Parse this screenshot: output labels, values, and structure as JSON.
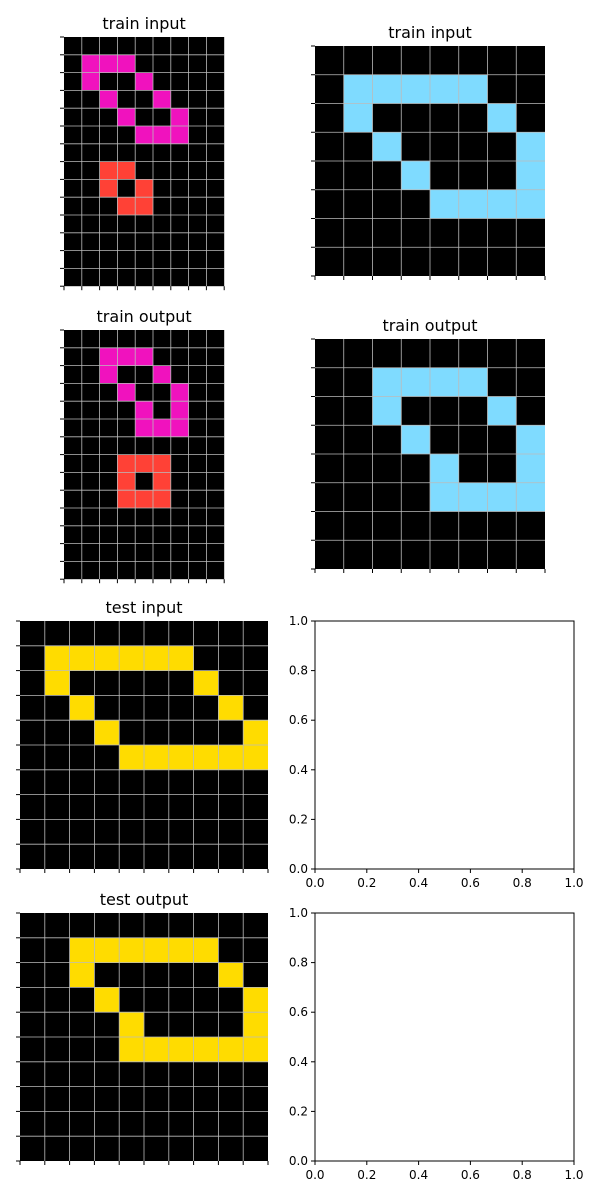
{
  "colors": {
    "0": "#000000",
    "1": "#f012be",
    "2": "#ff4136",
    "3": "#7fdbff",
    "4": "#ffdc00",
    "grid": "#bbbbbb"
  },
  "panels": [
    {
      "title": "train input",
      "grid": [
        [
          0,
          0,
          0,
          0,
          0,
          0,
          0,
          0,
          0
        ],
        [
          0,
          1,
          1,
          1,
          0,
          0,
          0,
          0,
          0
        ],
        [
          0,
          1,
          0,
          0,
          1,
          0,
          0,
          0,
          0
        ],
        [
          0,
          0,
          1,
          0,
          0,
          1,
          0,
          0,
          0
        ],
        [
          0,
          0,
          0,
          1,
          0,
          0,
          1,
          0,
          0
        ],
        [
          0,
          0,
          0,
          0,
          1,
          1,
          1,
          0,
          0
        ],
        [
          0,
          0,
          0,
          0,
          0,
          0,
          0,
          0,
          0
        ],
        [
          0,
          0,
          2,
          2,
          0,
          0,
          0,
          0,
          0
        ],
        [
          0,
          0,
          2,
          0,
          2,
          0,
          0,
          0,
          0
        ],
        [
          0,
          0,
          0,
          2,
          2,
          0,
          0,
          0,
          0
        ],
        [
          0,
          0,
          0,
          0,
          0,
          0,
          0,
          0,
          0
        ],
        [
          0,
          0,
          0,
          0,
          0,
          0,
          0,
          0,
          0
        ],
        [
          0,
          0,
          0,
          0,
          0,
          0,
          0,
          0,
          0
        ],
        [
          0,
          0,
          0,
          0,
          0,
          0,
          0,
          0,
          0
        ]
      ]
    },
    {
      "title": "train input",
      "grid": [
        [
          0,
          0,
          0,
          0,
          0,
          0,
          0,
          0
        ],
        [
          0,
          3,
          3,
          3,
          3,
          3,
          0,
          0
        ],
        [
          0,
          3,
          0,
          0,
          0,
          0,
          3,
          0
        ],
        [
          0,
          0,
          3,
          0,
          0,
          0,
          0,
          3
        ],
        [
          0,
          0,
          0,
          3,
          0,
          0,
          0,
          3
        ],
        [
          0,
          0,
          0,
          0,
          3,
          3,
          3,
          3
        ],
        [
          0,
          0,
          0,
          0,
          0,
          0,
          0,
          0
        ],
        [
          0,
          0,
          0,
          0,
          0,
          0,
          0,
          0
        ]
      ]
    },
    {
      "title": "train output",
      "grid": [
        [
          0,
          0,
          0,
          0,
          0,
          0,
          0,
          0,
          0
        ],
        [
          0,
          0,
          1,
          1,
          1,
          0,
          0,
          0,
          0
        ],
        [
          0,
          0,
          1,
          0,
          0,
          1,
          0,
          0,
          0
        ],
        [
          0,
          0,
          0,
          1,
          0,
          0,
          1,
          0,
          0
        ],
        [
          0,
          0,
          0,
          0,
          1,
          0,
          1,
          0,
          0
        ],
        [
          0,
          0,
          0,
          0,
          1,
          1,
          1,
          0,
          0
        ],
        [
          0,
          0,
          0,
          0,
          0,
          0,
          0,
          0,
          0
        ],
        [
          0,
          0,
          0,
          2,
          2,
          2,
          0,
          0,
          0
        ],
        [
          0,
          0,
          0,
          2,
          0,
          2,
          0,
          0,
          0
        ],
        [
          0,
          0,
          0,
          2,
          2,
          2,
          0,
          0,
          0
        ],
        [
          0,
          0,
          0,
          0,
          0,
          0,
          0,
          0,
          0
        ],
        [
          0,
          0,
          0,
          0,
          0,
          0,
          0,
          0,
          0
        ],
        [
          0,
          0,
          0,
          0,
          0,
          0,
          0,
          0,
          0
        ],
        [
          0,
          0,
          0,
          0,
          0,
          0,
          0,
          0,
          0
        ]
      ]
    },
    {
      "title": "train output",
      "grid": [
        [
          0,
          0,
          0,
          0,
          0,
          0,
          0,
          0
        ],
        [
          0,
          0,
          3,
          3,
          3,
          3,
          0,
          0
        ],
        [
          0,
          0,
          3,
          0,
          0,
          0,
          3,
          0
        ],
        [
          0,
          0,
          0,
          3,
          0,
          0,
          0,
          3
        ],
        [
          0,
          0,
          0,
          0,
          3,
          0,
          0,
          3
        ],
        [
          0,
          0,
          0,
          0,
          3,
          3,
          3,
          3
        ],
        [
          0,
          0,
          0,
          0,
          0,
          0,
          0,
          0
        ],
        [
          0,
          0,
          0,
          0,
          0,
          0,
          0,
          0
        ]
      ]
    },
    {
      "title": "test input",
      "grid": [
        [
          0,
          0,
          0,
          0,
          0,
          0,
          0,
          0,
          0,
          0
        ],
        [
          0,
          4,
          4,
          4,
          4,
          4,
          4,
          0,
          0,
          0
        ],
        [
          0,
          4,
          0,
          0,
          0,
          0,
          0,
          4,
          0,
          0
        ],
        [
          0,
          0,
          4,
          0,
          0,
          0,
          0,
          0,
          4,
          0
        ],
        [
          0,
          0,
          0,
          4,
          0,
          0,
          0,
          0,
          0,
          4
        ],
        [
          0,
          0,
          0,
          0,
          4,
          4,
          4,
          4,
          4,
          4
        ],
        [
          0,
          0,
          0,
          0,
          0,
          0,
          0,
          0,
          0,
          0
        ],
        [
          0,
          0,
          0,
          0,
          0,
          0,
          0,
          0,
          0,
          0
        ],
        [
          0,
          0,
          0,
          0,
          0,
          0,
          0,
          0,
          0,
          0
        ],
        [
          0,
          0,
          0,
          0,
          0,
          0,
          0,
          0,
          0,
          0
        ]
      ]
    },
    {
      "title": "test output",
      "grid": [
        [
          0,
          0,
          0,
          0,
          0,
          0,
          0,
          0,
          0,
          0
        ],
        [
          0,
          0,
          4,
          4,
          4,
          4,
          4,
          4,
          0,
          0
        ],
        [
          0,
          0,
          4,
          0,
          0,
          0,
          0,
          0,
          4,
          0
        ],
        [
          0,
          0,
          0,
          4,
          0,
          0,
          0,
          0,
          0,
          4
        ],
        [
          0,
          0,
          0,
          0,
          4,
          0,
          0,
          0,
          0,
          4
        ],
        [
          0,
          0,
          0,
          0,
          4,
          4,
          4,
          4,
          4,
          4
        ],
        [
          0,
          0,
          0,
          0,
          0,
          0,
          0,
          0,
          0,
          0
        ],
        [
          0,
          0,
          0,
          0,
          0,
          0,
          0,
          0,
          0,
          0
        ],
        [
          0,
          0,
          0,
          0,
          0,
          0,
          0,
          0,
          0,
          0
        ],
        [
          0,
          0,
          0,
          0,
          0,
          0,
          0,
          0,
          0,
          0
        ]
      ]
    }
  ],
  "empty_axes": {
    "ticks": [
      "0.0",
      "0.2",
      "0.4",
      "0.6",
      "0.8",
      "1.0"
    ]
  }
}
